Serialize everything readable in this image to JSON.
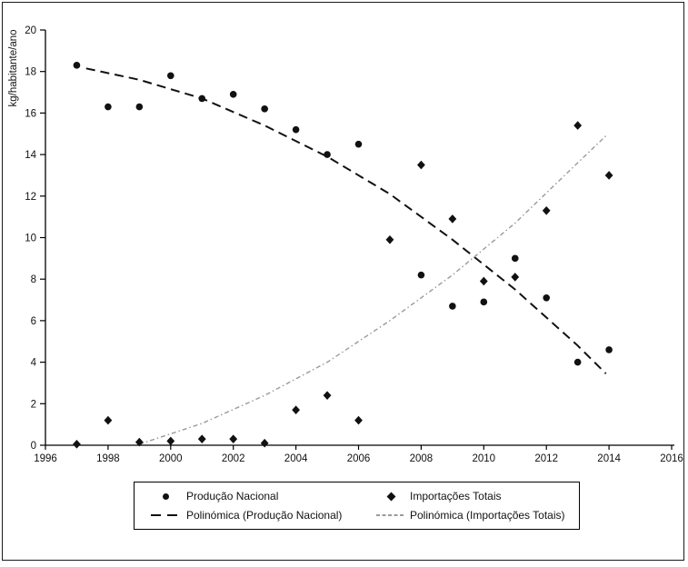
{
  "chart_data": {
    "type": "scatter",
    "title": "",
    "xlabel": "",
    "ylabel": "kg/habitante/ano",
    "xlim": [
      1996,
      2016
    ],
    "ylim": [
      0,
      20
    ],
    "x_ticks": [
      1996,
      1998,
      2000,
      2002,
      2004,
      2006,
      2008,
      2010,
      2012,
      2014,
      2016
    ],
    "y_ticks": [
      0,
      2,
      4,
      6,
      8,
      10,
      12,
      14,
      16,
      18,
      20
    ],
    "grid": false,
    "legend_position": "bottom",
    "colors": {
      "black": "#111111",
      "gray_trend": "#9a9a9a"
    },
    "series": [
      {
        "name": "Produção Nacional",
        "marker": "circle",
        "color": "#111111",
        "points": [
          [
            1997,
            18.3
          ],
          [
            1998,
            16.3
          ],
          [
            1999,
            16.3
          ],
          [
            2000,
            17.8
          ],
          [
            2001,
            16.7
          ],
          [
            2002,
            16.9
          ],
          [
            2003,
            16.2
          ],
          [
            2004,
            15.2
          ],
          [
            2005,
            14.0
          ],
          [
            2006,
            14.5
          ],
          [
            2008,
            8.2
          ],
          [
            2009,
            6.7
          ],
          [
            2010,
            6.9
          ],
          [
            2011,
            9.0
          ],
          [
            2012,
            7.1
          ],
          [
            2013,
            4.0
          ],
          [
            2014,
            4.6
          ]
        ]
      },
      {
        "name": "Importações Totais",
        "marker": "diamond",
        "color": "#111111",
        "points": [
          [
            1997,
            0.05
          ],
          [
            1998,
            1.2
          ],
          [
            1999,
            0.15
          ],
          [
            2000,
            0.2
          ],
          [
            2001,
            0.3
          ],
          [
            2002,
            0.3
          ],
          [
            2003,
            0.1
          ],
          [
            2004,
            1.7
          ],
          [
            2005,
            2.4
          ],
          [
            2006,
            1.2
          ],
          [
            2007,
            9.9
          ],
          [
            2008,
            13.5
          ],
          [
            2009,
            10.9
          ],
          [
            2010,
            7.9
          ],
          [
            2011,
            8.1
          ],
          [
            2012,
            11.3
          ],
          [
            2013,
            15.4
          ],
          [
            2014,
            13.0
          ]
        ]
      }
    ],
    "trendlines": [
      {
        "name": "Polinómica (Produção Nacional)",
        "style": "dashed",
        "color": "#111111",
        "width": 2,
        "points": [
          [
            1997.3,
            18.15
          ],
          [
            1999,
            17.6
          ],
          [
            2001,
            16.7
          ],
          [
            2003,
            15.4
          ],
          [
            2005,
            13.9
          ],
          [
            2007,
            12.1
          ],
          [
            2009,
            9.9
          ],
          [
            2011,
            7.5
          ],
          [
            2013,
            4.8
          ],
          [
            2013.9,
            3.45
          ]
        ]
      },
      {
        "name": "Polinómica (Importações Totais)",
        "style": "dash-dot",
        "color": "#9a9a9a",
        "width": 1.4,
        "points": [
          [
            1999,
            0.05
          ],
          [
            2001,
            1.05
          ],
          [
            2003,
            2.4
          ],
          [
            2005,
            4.0
          ],
          [
            2007,
            6.0
          ],
          [
            2009,
            8.2
          ],
          [
            2011,
            10.7
          ],
          [
            2013,
            13.6
          ],
          [
            2013.9,
            14.9
          ]
        ]
      }
    ]
  }
}
